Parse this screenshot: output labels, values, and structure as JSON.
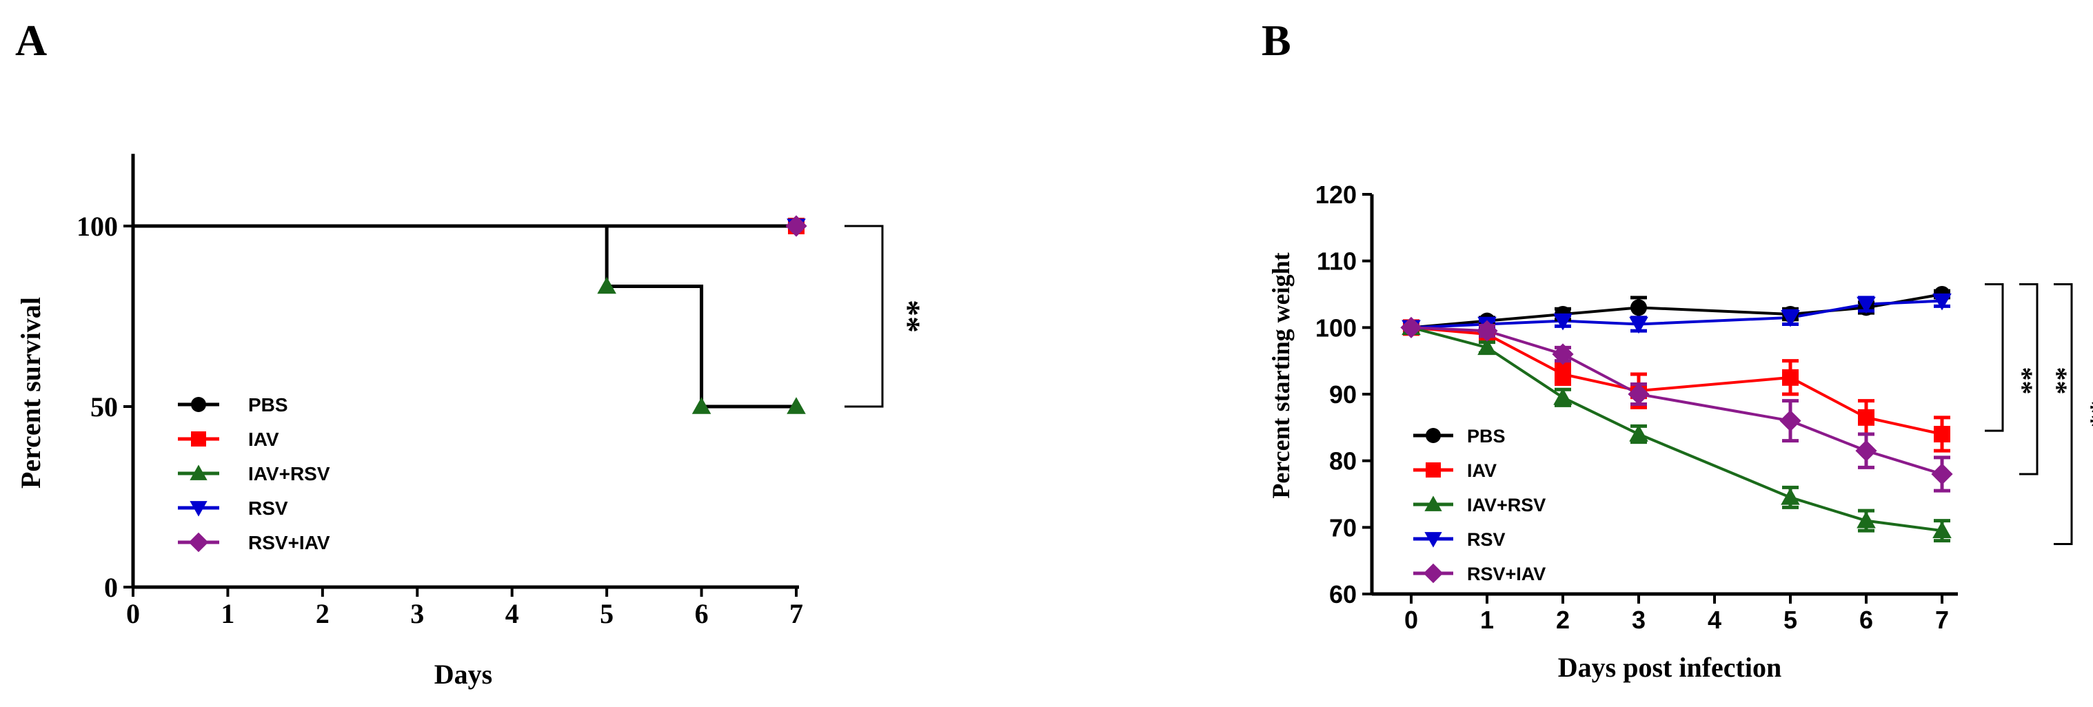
{
  "panels": [
    "A",
    "B"
  ],
  "chart_data": [
    {
      "type": "line",
      "panel": "A",
      "step": true,
      "xlabel": "Days",
      "ylabel": "Percent survival",
      "xlim": [
        0,
        7
      ],
      "ylim": [
        0,
        120
      ],
      "xticks": [
        0,
        1,
        2,
        3,
        4,
        5,
        6,
        7
      ],
      "yticks": [
        0,
        50,
        100
      ],
      "legend_position": "lower-left",
      "series": [
        {
          "name": "PBS",
          "color": "#000000",
          "marker": "circle",
          "x": [
            0,
            7
          ],
          "y": [
            100,
            100
          ]
        },
        {
          "name": "IAV",
          "color": "#ff0000",
          "marker": "square",
          "x": [
            0,
            7
          ],
          "y": [
            100,
            100
          ]
        },
        {
          "name": "IAV+RSV",
          "color": "#1b6b1b",
          "marker": "triangle-up",
          "x": [
            0,
            5,
            6,
            7
          ],
          "y": [
            100,
            83.3,
            50,
            50
          ]
        },
        {
          "name": "RSV",
          "color": "#0000d0",
          "marker": "triangle-down",
          "x": [
            0,
            7
          ],
          "y": [
            100,
            100
          ]
        },
        {
          "name": "RSV+IAV",
          "color": "#8b1a8b",
          "marker": "diamond",
          "x": [
            0,
            7
          ],
          "y": [
            100,
            100
          ]
        }
      ],
      "annotations": [
        {
          "text": "**",
          "from_y": 100,
          "to_y": 50
        }
      ]
    },
    {
      "type": "line",
      "panel": "B",
      "xlabel": "Days post infection",
      "ylabel": "Percent starting weight",
      "ylim": [
        60,
        120
      ],
      "xticks": [
        0,
        1,
        2,
        3,
        4,
        5,
        6,
        7
      ],
      "yticks": [
        60,
        70,
        80,
        90,
        100,
        110,
        120
      ],
      "legend_position": "lower-left",
      "series": [
        {
          "name": "PBS",
          "color": "#000000",
          "marker": "circle",
          "x": [
            0,
            1,
            2,
            3,
            5,
            6,
            7
          ],
          "y": [
            100,
            101,
            102,
            103,
            102,
            103,
            105
          ],
          "err": [
            0,
            0.5,
            0.8,
            1.5,
            0.8,
            0.8,
            0.5
          ]
        },
        {
          "name": "IAV",
          "color": "#ff0000",
          "marker": "square",
          "x": [
            0,
            1,
            2,
            3,
            5,
            6,
            7
          ],
          "y": [
            100,
            99,
            93,
            90.5,
            92.5,
            86.5,
            84
          ],
          "err": [
            0,
            0.8,
            1.5,
            2.5,
            2.5,
            2.5,
            2.5
          ]
        },
        {
          "name": "IAV+RSV",
          "color": "#1b6b1b",
          "marker": "triangle-up",
          "x": [
            0,
            1,
            2,
            3,
            5,
            6,
            7
          ],
          "y": [
            100,
            97,
            89.5,
            84,
            74.5,
            71,
            69.5
          ],
          "err": [
            0,
            0.8,
            1.2,
            1.2,
            1.5,
            1.5,
            1.5
          ]
        },
        {
          "name": "RSV",
          "color": "#0000d0",
          "marker": "triangle-down",
          "x": [
            0,
            1,
            2,
            3,
            5,
            6,
            7
          ],
          "y": [
            100,
            100.5,
            101,
            100.5,
            101.5,
            103.5,
            104
          ],
          "err": [
            0,
            0.5,
            0.8,
            1,
            1,
            1,
            0.8
          ]
        },
        {
          "name": "RSV+IAV",
          "color": "#8b1a8b",
          "marker": "diamond",
          "x": [
            0,
            1,
            2,
            3,
            5,
            6,
            7
          ],
          "y": [
            100,
            99.5,
            96,
            90,
            86,
            81.5,
            78
          ],
          "err": [
            0,
            0.8,
            1,
            1.5,
            3,
            2.5,
            2.5
          ]
        }
      ],
      "annotations": [
        {
          "text": "**",
          "from_y": 106.5,
          "to_y": 84.5
        },
        {
          "text": "**",
          "from_y": 106.5,
          "to_y": 78
        },
        {
          "text": "**",
          "from_y": 106.5,
          "to_y": 67.5
        }
      ]
    }
  ]
}
